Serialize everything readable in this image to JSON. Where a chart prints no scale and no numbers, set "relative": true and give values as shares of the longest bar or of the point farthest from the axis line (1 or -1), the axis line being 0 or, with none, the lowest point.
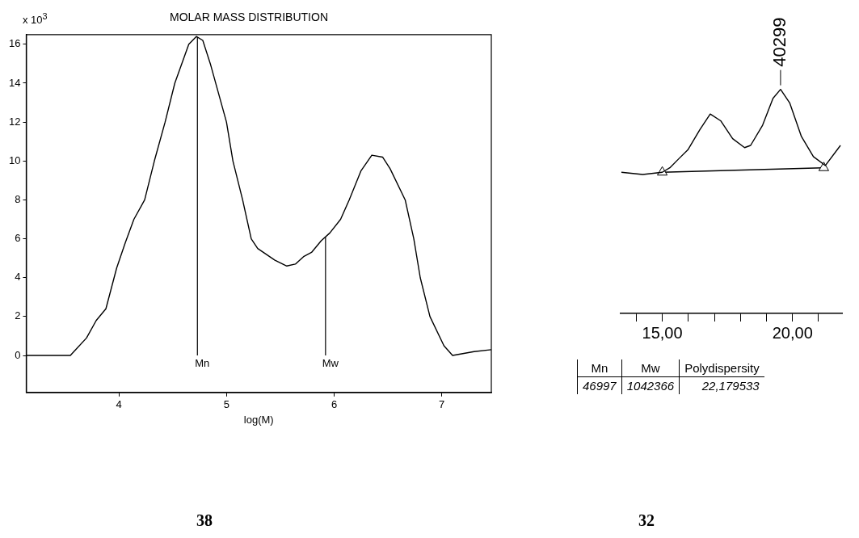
{
  "chart_data": [
    {
      "type": "line",
      "title": "MOLAR MASS DISTRIBUTION",
      "xlabel": "log(M)",
      "ylabel": "x 10$^{3}$",
      "xlim": [
        3.14,
        7.46
      ],
      "ylim": [
        -1.9,
        16.5
      ],
      "xticks": [
        4,
        5,
        6,
        7
      ],
      "yticks": [
        0,
        2,
        4,
        6,
        8,
        10,
        12,
        14,
        16
      ],
      "grid": false,
      "legend": false,
      "marker": "none",
      "x": [
        3.14,
        3.5,
        3.55,
        3.6,
        3.7,
        3.79,
        3.88,
        3.98,
        4.06,
        4.14,
        4.24,
        4.33,
        4.43,
        4.52,
        4.65,
        4.72,
        4.78,
        4.85,
        5.0,
        5.06,
        5.15,
        5.23,
        5.29,
        5.45,
        5.56,
        5.64,
        5.72,
        5.79,
        5.88,
        5.96,
        6.06,
        6.14,
        6.25,
        6.35,
        6.45,
        6.52,
        6.66,
        6.74,
        6.8,
        6.89,
        7.02,
        7.1,
        7.3,
        7.46
      ],
      "series": [
        {
          "color": "#000000",
          "values": [
            0,
            0,
            0,
            0.3,
            0.9,
            1.8,
            2.4,
            4.5,
            5.8,
            7,
            8,
            10,
            12,
            14,
            16,
            16.4,
            16.2,
            15,
            12,
            10,
            8,
            6,
            5.5,
            4.9,
            4.6,
            4.7,
            5.1,
            5.3,
            5.9,
            6.3,
            7,
            8,
            9.5,
            10.3,
            10.2,
            9.6,
            8,
            6,
            4,
            2,
            0.5,
            0,
            0.2,
            0.3
          ]
        }
      ],
      "ref_lines": [
        {
          "axis": "x",
          "value": 4.73,
          "label": "Mn"
        },
        {
          "axis": "x",
          "value": 5.92,
          "label": "Mw"
        }
      ],
      "annotations": [
        "38"
      ]
    },
    {
      "type": "line",
      "relative": true,
      "xlim": [
        13.4,
        21.9
      ],
      "xticks": [
        {
          "value": 14,
          "label": null
        },
        {
          "value": 15,
          "label": "15,00"
        },
        {
          "value": 16,
          "label": null
        },
        {
          "value": 17,
          "label": null
        },
        {
          "value": 18,
          "label": null
        },
        {
          "value": 19,
          "label": null
        },
        {
          "value": 20,
          "label": "20,00"
        },
        {
          "value": 21,
          "label": null
        }
      ],
      "grid": false,
      "legend": false,
      "marker": "none",
      "series": [
        {
          "color": "#000000",
          "x": [
            13.43,
            14.25,
            15.0,
            15.29,
            15.63,
            15.98,
            16.44,
            16.84,
            17.24,
            17.7,
            18.16,
            18.39,
            18.85,
            19.25,
            19.54,
            19.89,
            20.34,
            20.8,
            21.26,
            21.84
          ],
          "values": [
            0.63,
            0.62,
            0.63,
            0.65,
            0.69,
            0.73,
            0.82,
            0.89,
            0.86,
            0.78,
            0.74,
            0.75,
            0.84,
            0.96,
            1,
            0.94,
            0.79,
            0.7,
            0.66,
            0.75
          ]
        },
        {
          "color": "#000000",
          "marker": "triangle",
          "x": [
            15.0,
            21.2
          ],
          "values": [
            0.63,
            0.65
          ]
        }
      ],
      "annotations": [
        {
          "text": "40299",
          "x": 19.54,
          "y": 1
        },
        "32"
      ]
    },
    {
      "type": "other",
      "annotations": [
        "Mn",
        "Mw",
        "Polydispersity",
        "46997",
        "1042366",
        "22,179533"
      ]
    }
  ]
}
